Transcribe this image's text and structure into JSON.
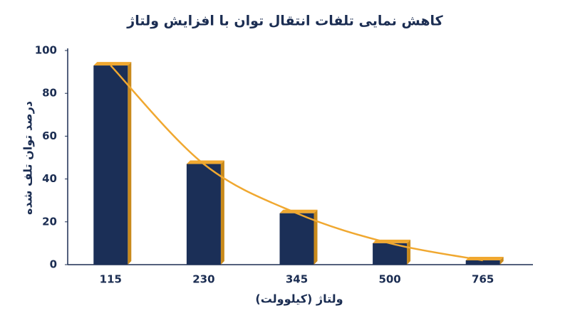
{
  "chart_data": {
    "type": "bar",
    "title": "کاهش نمایی تلفات انتقال توان با افزایش ولتاژ",
    "x_label": "ولتاژ (کیلوولت)",
    "y_label": "درصد توان تلف شده",
    "categories": [
      "115",
      "230",
      "345",
      "500",
      "765"
    ],
    "values": [
      93,
      47,
      24,
      10,
      2
    ],
    "color": "#1b2f57",
    "accent_color": "#f0a830",
    "trend_color": "#f0a830",
    "ylim": [
      0,
      100
    ],
    "yticks": [
      0,
      20,
      40,
      60,
      80,
      100
    ],
    "grid": false
  }
}
